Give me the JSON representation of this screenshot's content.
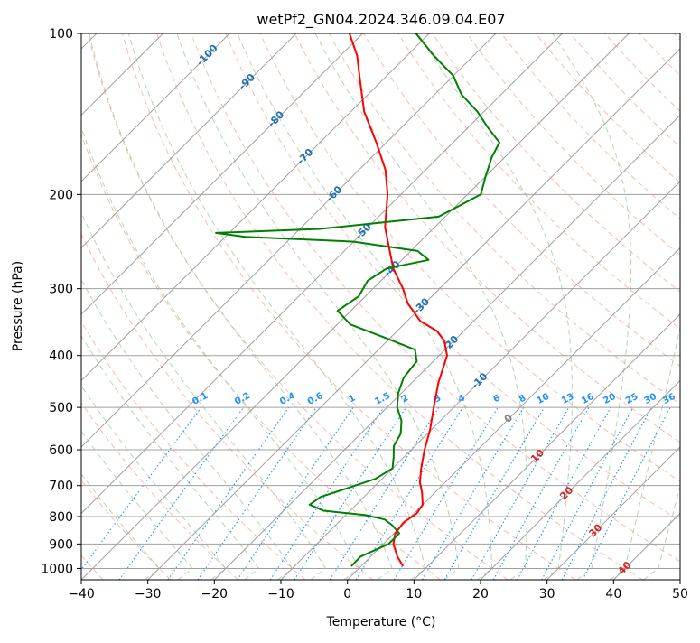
{
  "chart_data": {
    "type": "line",
    "subtype": "skew-T log-P diagram",
    "title": "wetPf2_GN04.2024.346.09.04.E07",
    "xlabel": "Temperature (°C)",
    "ylabel": "Pressure (hPa)",
    "xlim": [
      -40,
      50
    ],
    "ylim": [
      1050,
      100
    ],
    "y_scale": "log",
    "x_ticks": [
      -40,
      -30,
      -20,
      -10,
      0,
      10,
      20,
      30,
      40,
      50
    ],
    "y_ticks": [
      1000,
      900,
      800,
      700,
      600,
      500,
      400,
      300,
      200,
      100
    ],
    "grid": true,
    "series": [
      {
        "color": "#ff0000",
        "points": [
          {
            "p": 990,
            "t": 6.3
          },
          {
            "p": 950,
            "t": 4.0
          },
          {
            "p": 900,
            "t": 1.5
          },
          {
            "p": 860,
            "t": 0.2
          },
          {
            "p": 820,
            "t": -0.2
          },
          {
            "p": 790,
            "t": 0.4
          },
          {
            "p": 760,
            "t": 0.0
          },
          {
            "p": 720,
            "t": -2.0
          },
          {
            "p": 690,
            "t": -3.8
          },
          {
            "p": 650,
            "t": -5.7
          },
          {
            "p": 600,
            "t": -8.0
          },
          {
            "p": 550,
            "t": -10.2
          },
          {
            "p": 500,
            "t": -13.0
          },
          {
            "p": 450,
            "t": -16.0
          },
          {
            "p": 400,
            "t": -18.8
          },
          {
            "p": 375,
            "t": -21.5
          },
          {
            "p": 360,
            "t": -24.0
          },
          {
            "p": 345,
            "t": -28.0
          },
          {
            "p": 320,
            "t": -32.5
          },
          {
            "p": 300,
            "t": -35.5
          },
          {
            "p": 275,
            "t": -40.0
          },
          {
            "p": 250,
            "t": -44.0
          },
          {
            "p": 230,
            "t": -47.5
          },
          {
            "p": 200,
            "t": -52.0
          },
          {
            "p": 180,
            "t": -56.0
          },
          {
            "p": 160,
            "t": -61.5
          },
          {
            "p": 140,
            "t": -68.0
          },
          {
            "p": 125,
            "t": -72.5
          },
          {
            "p": 110,
            "t": -77.5
          },
          {
            "p": 100,
            "t": -82.0
          }
        ]
      },
      {
        "color": "#008000",
        "points": [
          {
            "p": 990,
            "t": -1.5
          },
          {
            "p": 950,
            "t": -1.5
          },
          {
            "p": 900,
            "t": 0.8
          },
          {
            "p": 860,
            "t": 0.8
          },
          {
            "p": 830,
            "t": -1.5
          },
          {
            "p": 810,
            "t": -3.5
          },
          {
            "p": 795,
            "t": -7.0
          },
          {
            "p": 780,
            "t": -14.0
          },
          {
            "p": 760,
            "t": -17.0
          },
          {
            "p": 735,
            "t": -16.5
          },
          {
            "p": 710,
            "t": -14.0
          },
          {
            "p": 680,
            "t": -11.0
          },
          {
            "p": 650,
            "t": -10.0
          },
          {
            "p": 620,
            "t": -11.5
          },
          {
            "p": 590,
            "t": -13.2
          },
          {
            "p": 560,
            "t": -14.0
          },
          {
            "p": 530,
            "t": -15.8
          },
          {
            "p": 500,
            "t": -18.5
          },
          {
            "p": 470,
            "t": -20.5
          },
          {
            "p": 440,
            "t": -22.0
          },
          {
            "p": 410,
            "t": -22.5
          },
          {
            "p": 390,
            "t": -24.5
          },
          {
            "p": 370,
            "t": -31.0
          },
          {
            "p": 350,
            "t": -38.0
          },
          {
            "p": 330,
            "t": -42.0
          },
          {
            "p": 310,
            "t": -41.0
          },
          {
            "p": 290,
            "t": -42.0
          },
          {
            "p": 275,
            "t": -41.0
          },
          {
            "p": 265,
            "t": -36.0
          },
          {
            "p": 255,
            "t": -39.0
          },
          {
            "p": 245,
            "t": -50.0
          },
          {
            "p": 240,
            "t": -67.0
          },
          {
            "p": 236,
            "t": -72.0
          },
          {
            "p": 232,
            "t": -57.0
          },
          {
            "p": 220,
            "t": -41.0
          },
          {
            "p": 200,
            "t": -38.0
          },
          {
            "p": 185,
            "t": -40.0
          },
          {
            "p": 170,
            "t": -42.0
          },
          {
            "p": 160,
            "t": -43.0
          },
          {
            "p": 150,
            "t": -47.0
          },
          {
            "p": 140,
            "t": -51.0
          },
          {
            "p": 130,
            "t": -56.0
          },
          {
            "p": 120,
            "t": -60.0
          },
          {
            "p": 110,
            "t": -66.0
          },
          {
            "p": 100,
            "t": -72.0
          }
        ]
      }
    ],
    "mixing_ratio_labels": [
      "0.1",
      "0.2",
      "0.4",
      "0.6",
      "1",
      "1.5",
      "2",
      "3",
      "4",
      "6",
      "8",
      "10",
      "13",
      "16",
      "20",
      "25",
      "30",
      "36"
    ],
    "isotherm_labels": [
      "-100",
      "-90",
      "-80",
      "-70",
      "-60",
      "-50",
      "-40",
      "-30",
      "-20",
      "-10",
      "0",
      "10",
      "20",
      "30",
      "40"
    ]
  },
  "colors": {
    "temperature": "#ff0000",
    "dewpoint": "#008000",
    "isotherm": "#a0a0a0",
    "dry_adiabat": "#f5a08a",
    "moist_adiabat": "#9dcc9d",
    "mixing_ratio": "#1e90ff",
    "isotherm_label": "#1f6fb4",
    "isotherm_label_warm": "#d62728",
    "isotherm_label_zero": "#808080"
  }
}
